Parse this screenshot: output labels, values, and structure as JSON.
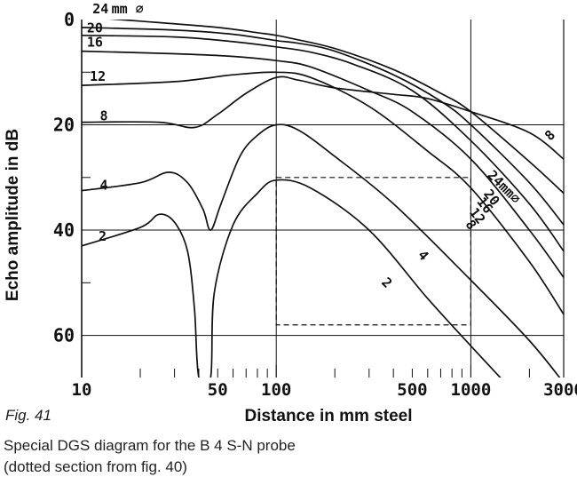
{
  "figure_label": "Fig. 41",
  "caption": {
    "line1": "Special DGS diagram for the B 4 S-N probe",
    "line2": "(dotted section from fig. 40)"
  },
  "chart_data": {
    "type": "line",
    "xlabel": "Distance in mm steel",
    "ylabel": "Echo amplitude in dB",
    "x_scale": "log",
    "xlim": [
      10,
      3000
    ],
    "ylim": [
      68,
      0
    ],
    "y_inverted": true,
    "grid": true,
    "x_ticks": [
      {
        "value": 10,
        "label": "10"
      },
      {
        "value": 50,
        "label": "50"
      },
      {
        "value": 100,
        "label": "100"
      },
      {
        "value": 500,
        "label": "500"
      },
      {
        "value": 1000,
        "label": "1000"
      },
      {
        "value": 3000,
        "label": "3000"
      }
    ],
    "x_gridlines": [
      100,
      1000
    ],
    "y_ticks": [
      {
        "value": 0,
        "label": "0"
      },
      {
        "value": 20,
        "label": "20"
      },
      {
        "value": 40,
        "label": "40"
      },
      {
        "value": 60,
        "label": "60"
      }
    ],
    "y_gridlines": [
      20,
      40,
      60
    ],
    "dotted_section": {
      "x": [
        100,
        1000
      ],
      "y": [
        30,
        58
      ]
    },
    "series": [
      {
        "name": "24 mm ⌀",
        "points": [
          [
            10,
            -0.5
          ],
          [
            20,
            0.3
          ],
          [
            50,
            1.5
          ],
          [
            80,
            2.5
          ],
          [
            100,
            3
          ],
          [
            120,
            3.6
          ],
          [
            200,
            5.5
          ],
          [
            400,
            9.5
          ],
          [
            700,
            14
          ],
          [
            1000,
            17.5
          ],
          [
            2000,
            27
          ],
          [
            3000,
            33
          ]
        ]
      },
      {
        "name": "20",
        "points": [
          [
            10,
            1.5
          ],
          [
            30,
            2
          ],
          [
            60,
            2.8
          ],
          [
            100,
            4
          ],
          [
            130,
            4.5
          ],
          [
            200,
            6
          ],
          [
            400,
            10.5
          ],
          [
            700,
            15.5
          ],
          [
            1000,
            20
          ],
          [
            2000,
            31
          ],
          [
            3000,
            39
          ]
        ]
      },
      {
        "name": "16",
        "points": [
          [
            10,
            3
          ],
          [
            30,
            3.3
          ],
          [
            60,
            4.2
          ],
          [
            100,
            5.2
          ],
          [
            150,
            6.2
          ],
          [
            250,
            8.5
          ],
          [
            500,
            13.5
          ],
          [
            1000,
            23
          ],
          [
            2000,
            35
          ],
          [
            3000,
            44
          ]
        ]
      },
      {
        "name": "12",
        "points": [
          [
            10,
            6
          ],
          [
            30,
            6.5
          ],
          [
            60,
            7
          ],
          [
            100,
            7.8
          ],
          [
            150,
            9
          ],
          [
            300,
            13.5
          ],
          [
            500,
            17.5
          ],
          [
            1000,
            26.5
          ],
          [
            2000,
            40
          ],
          [
            3000,
            49
          ]
        ]
      },
      {
        "name": "8",
        "points": [
          [
            10,
            12.5
          ],
          [
            30,
            11.8
          ],
          [
            60,
            10.5
          ],
          [
            100,
            10
          ],
          [
            150,
            11
          ],
          [
            300,
            16.5
          ],
          [
            600,
            25
          ],
          [
            1000,
            32
          ],
          [
            2000,
            46
          ],
          [
            3000,
            56
          ]
        ]
      },
      {
        "name": "8 ⌀",
        "points": [
          [
            10,
            19.5
          ],
          [
            25,
            19.5
          ],
          [
            38,
            20.5
          ],
          [
            50,
            18
          ],
          [
            70,
            14
          ],
          [
            100,
            11
          ],
          [
            130,
            11.5
          ],
          [
            200,
            13
          ],
          [
            400,
            14.2
          ],
          [
            600,
            15
          ],
          [
            1000,
            17.5
          ],
          [
            2000,
            21.5
          ],
          [
            3000,
            26.5
          ]
        ]
      },
      {
        "name": "4",
        "points": [
          [
            10,
            32.5
          ],
          [
            20,
            31
          ],
          [
            28,
            29
          ],
          [
            35,
            31
          ],
          [
            42,
            36
          ],
          [
            46,
            40
          ],
          [
            52,
            35
          ],
          [
            65,
            26
          ],
          [
            80,
            22
          ],
          [
            100,
            20
          ],
          [
            130,
            21
          ],
          [
            200,
            26
          ],
          [
            400,
            35
          ],
          [
            1000,
            49.5
          ],
          [
            2000,
            61
          ],
          [
            3000,
            69
          ]
        ]
      },
      {
        "name": "2",
        "points": [
          [
            10,
            43
          ],
          [
            20,
            39.5
          ],
          [
            25,
            37
          ],
          [
            30,
            38.5
          ],
          [
            35,
            44
          ],
          [
            38,
            55
          ],
          [
            40,
            68
          ],
          [
            46,
            68
          ],
          [
            48,
            52
          ],
          [
            60,
            39
          ],
          [
            80,
            33
          ],
          [
            100,
            30.5
          ],
          [
            150,
            32
          ],
          [
            300,
            40
          ],
          [
            600,
            53
          ],
          [
            1000,
            62
          ],
          [
            1500,
            69
          ]
        ]
      }
    ],
    "curve_labels": [
      {
        "text": "24",
        "x": 12.5,
        "y": -2.0
      },
      {
        "text": "mm ⌀",
        "x": 17.2,
        "y": -2.0
      },
      {
        "text": "20",
        "x": 11.7,
        "y": 1.6
      },
      {
        "text": "16",
        "x": 11.7,
        "y": 4.3
      },
      {
        "text": "12",
        "x": 12.1,
        "y": 10.8
      },
      {
        "text": "8",
        "x": 13.0,
        "y": 18.3
      },
      {
        "text": "4",
        "x": 13.0,
        "y": 31.5
      },
      {
        "text": "2",
        "x": 12.8,
        "y": 41.2
      },
      {
        "text": "8",
        "x": 2550,
        "y": 22.0,
        "rotate": -45
      },
      {
        "text": "24mm⌀",
        "x": 1480,
        "y": 31.8,
        "rotate": 45
      },
      {
        "text": "20",
        "x": 1280,
        "y": 33.8,
        "rotate": 52
      },
      {
        "text": "16",
        "x": 1180,
        "y": 35.3,
        "rotate": 52
      },
      {
        "text": "12",
        "x": 1080,
        "y": 37.3,
        "rotate": 52
      },
      {
        "text": "8",
        "x": 1000,
        "y": 39.0,
        "rotate": 52
      },
      {
        "text": "4",
        "x": 570,
        "y": 44.8,
        "rotate": 48
      },
      {
        "text": "2",
        "x": 370,
        "y": 50.0,
        "rotate": 45
      }
    ]
  }
}
